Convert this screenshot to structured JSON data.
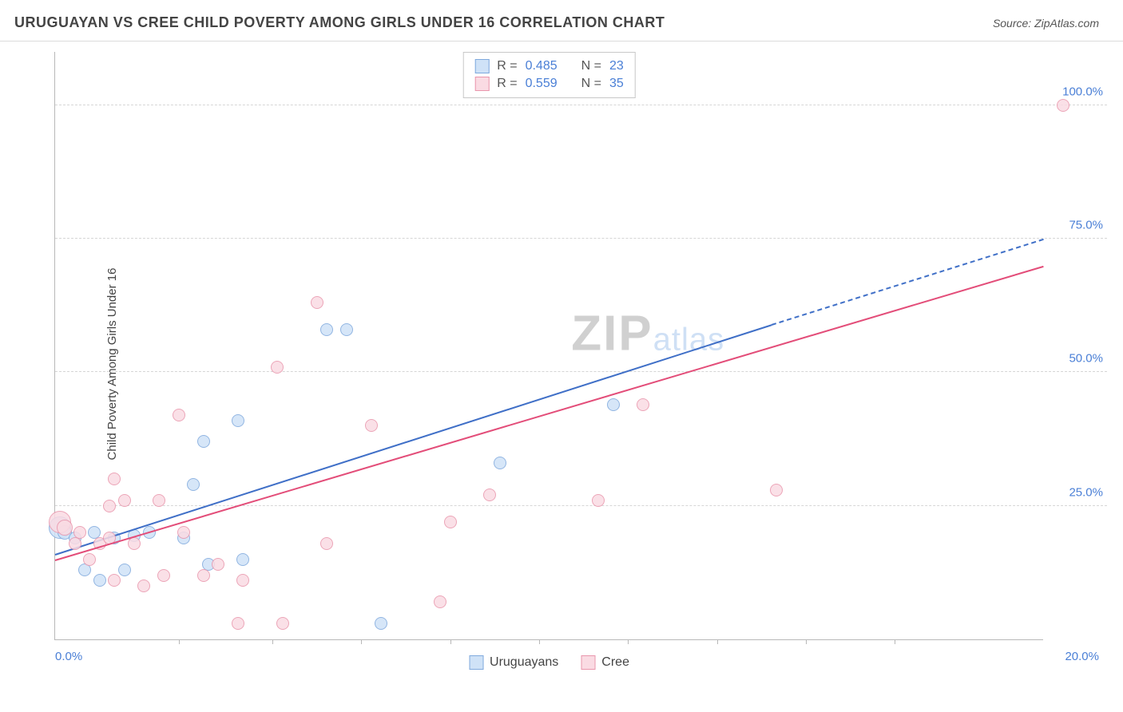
{
  "header": {
    "title": "URUGUAYAN VS CREE CHILD POVERTY AMONG GIRLS UNDER 16 CORRELATION CHART",
    "source_prefix": "Source: ",
    "source": "ZipAtlas.com"
  },
  "chart": {
    "type": "scatter",
    "y_axis_label": "Child Poverty Among Girls Under 16",
    "xlim": [
      0,
      20
    ],
    "ylim": [
      0,
      110
    ],
    "x_label_min": "0.0%",
    "x_label_max": "20.0%",
    "x_ticks_pct": [
      12.5,
      22,
      31,
      40,
      49,
      58,
      67,
      76,
      85
    ],
    "y_gridlines": [
      {
        "val": 25,
        "label": "25.0%"
      },
      {
        "val": 50,
        "label": "50.0%"
      },
      {
        "val": 75,
        "label": "75.0%"
      },
      {
        "val": 100,
        "label": "100.0%"
      }
    ],
    "background_color": "#ffffff",
    "grid_color": "#d6d6d6",
    "axis_color": "#b8b8b8",
    "label_color": "#4a7fd6",
    "series": [
      {
        "name": "Uruguayans",
        "fill": "#cfe2f7",
        "stroke": "#7fa9dd",
        "trend_color": "#3f6fc7",
        "r_value": "0.485",
        "n_value": "23",
        "trend": {
          "x1": 0,
          "y1": 16,
          "x2_solid": 14.5,
          "y2_solid": 59,
          "x2_dash": 20,
          "y2_dash": 75
        },
        "points": [
          {
            "x": 0.1,
            "y": 21,
            "r": 14
          },
          {
            "x": 0.2,
            "y": 20,
            "r": 9
          },
          {
            "x": 0.4,
            "y": 19,
            "r": 8
          },
          {
            "x": 0.6,
            "y": 13,
            "r": 8
          },
          {
            "x": 0.8,
            "y": 20,
            "r": 8
          },
          {
            "x": 0.9,
            "y": 11,
            "r": 8
          },
          {
            "x": 1.2,
            "y": 19,
            "r": 8
          },
          {
            "x": 1.4,
            "y": 13,
            "r": 8
          },
          {
            "x": 1.6,
            "y": 19.5,
            "r": 8
          },
          {
            "x": 1.9,
            "y": 20,
            "r": 8
          },
          {
            "x": 2.6,
            "y": 19,
            "r": 8
          },
          {
            "x": 2.8,
            "y": 29,
            "r": 8
          },
          {
            "x": 3.0,
            "y": 37,
            "r": 8
          },
          {
            "x": 3.1,
            "y": 14,
            "r": 8
          },
          {
            "x": 3.7,
            "y": 41,
            "r": 8
          },
          {
            "x": 3.8,
            "y": 15,
            "r": 8
          },
          {
            "x": 5.5,
            "y": 58,
            "r": 8
          },
          {
            "x": 5.9,
            "y": 58,
            "r": 8
          },
          {
            "x": 6.6,
            "y": 3,
            "r": 8
          },
          {
            "x": 9.0,
            "y": 33,
            "r": 8
          },
          {
            "x": 11.3,
            "y": 44,
            "r": 8
          }
        ]
      },
      {
        "name": "Cree",
        "fill": "#fadbe3",
        "stroke": "#e996ac",
        "trend_color": "#e34d79",
        "r_value": "0.559",
        "n_value": "35",
        "trend": {
          "x1": 0,
          "y1": 15,
          "x2_solid": 20,
          "y2_solid": 70,
          "x2_dash": 20,
          "y2_dash": 70
        },
        "points": [
          {
            "x": 0.1,
            "y": 22,
            "r": 14
          },
          {
            "x": 0.2,
            "y": 21,
            "r": 10
          },
          {
            "x": 0.4,
            "y": 18,
            "r": 8
          },
          {
            "x": 0.5,
            "y": 20,
            "r": 8
          },
          {
            "x": 0.7,
            "y": 15,
            "r": 8
          },
          {
            "x": 0.9,
            "y": 18,
            "r": 8
          },
          {
            "x": 1.1,
            "y": 19,
            "r": 8
          },
          {
            "x": 1.1,
            "y": 25,
            "r": 8
          },
          {
            "x": 1.2,
            "y": 30,
            "r": 8
          },
          {
            "x": 1.2,
            "y": 11,
            "r": 8
          },
          {
            "x": 1.4,
            "y": 26,
            "r": 8
          },
          {
            "x": 1.6,
            "y": 18,
            "r": 8
          },
          {
            "x": 1.8,
            "y": 10,
            "r": 8
          },
          {
            "x": 2.1,
            "y": 26,
            "r": 8
          },
          {
            "x": 2.2,
            "y": 12,
            "r": 8
          },
          {
            "x": 2.5,
            "y": 42,
            "r": 8
          },
          {
            "x": 2.6,
            "y": 20,
            "r": 8
          },
          {
            "x": 3.0,
            "y": 12,
            "r": 8
          },
          {
            "x": 3.3,
            "y": 14,
            "r": 8
          },
          {
            "x": 3.7,
            "y": 3,
            "r": 8
          },
          {
            "x": 3.8,
            "y": 11,
            "r": 8
          },
          {
            "x": 4.5,
            "y": 51,
            "r": 8
          },
          {
            "x": 4.6,
            "y": 3,
            "r": 8
          },
          {
            "x": 5.3,
            "y": 63,
            "r": 8
          },
          {
            "x": 5.5,
            "y": 18,
            "r": 8
          },
          {
            "x": 6.4,
            "y": 40,
            "r": 8
          },
          {
            "x": 7.8,
            "y": 7,
            "r": 8
          },
          {
            "x": 8.0,
            "y": 22,
            "r": 8
          },
          {
            "x": 8.8,
            "y": 27,
            "r": 8
          },
          {
            "x": 11.0,
            "y": 26,
            "r": 8
          },
          {
            "x": 11.9,
            "y": 44,
            "r": 8
          },
          {
            "x": 14.6,
            "y": 28,
            "r": 8
          },
          {
            "x": 20.4,
            "y": 100,
            "r": 8
          }
        ]
      }
    ],
    "legend_labels": {
      "r": "R =",
      "n": "N ="
    }
  },
  "watermark": {
    "zip": "ZIP",
    "atlas": "atlas"
  }
}
